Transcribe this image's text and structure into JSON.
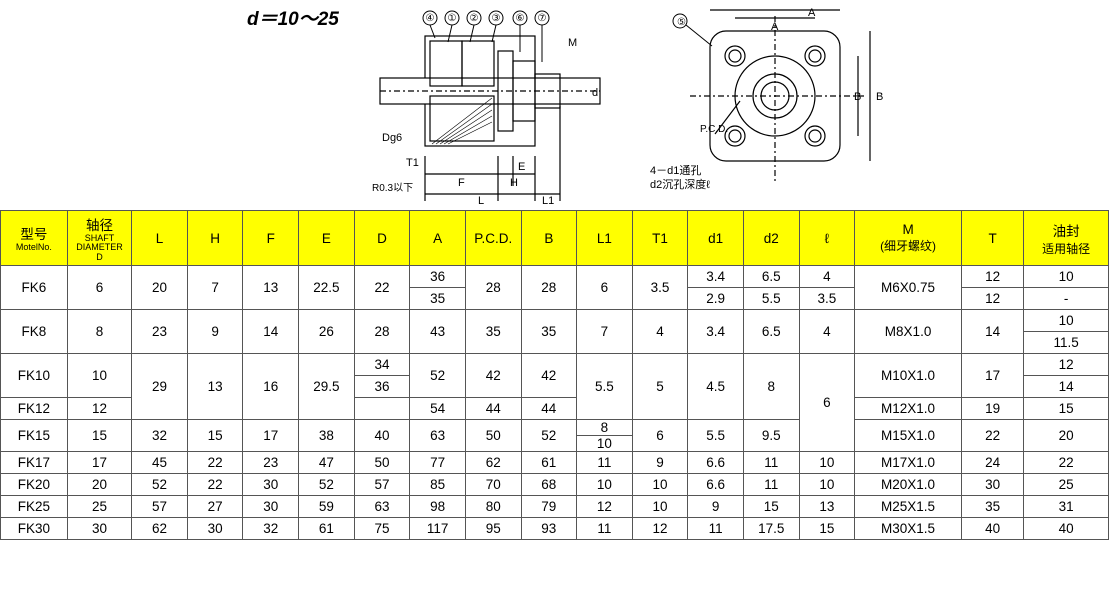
{
  "header_label": "d＝10～25",
  "diagram_left_labels": {
    "balloons": [
      "④",
      "①",
      "②",
      "③",
      "⑥",
      "⑦"
    ],
    "M": "M",
    "d": "d",
    "Dg6": "Dg6",
    "T1": "T1",
    "E": "E",
    "F": "F",
    "H": "H",
    "L": "L",
    "L1": "L1",
    "R": "R0.3以下"
  },
  "diagram_right_labels": {
    "balloon": "⑤",
    "A": "A",
    "B": "B",
    "PCD": "P.C.D.",
    "d1d2": "4－d1通孔\nd2沉孔深度ℓ"
  },
  "columns": [
    {
      "k": "model",
      "t": "型号",
      "s": "MotelNo."
    },
    {
      "k": "shaft",
      "t": "轴径",
      "s": "SHAFT\nDIAMETER\nD"
    },
    {
      "k": "L",
      "t": "L"
    },
    {
      "k": "H",
      "t": "H"
    },
    {
      "k": "F",
      "t": "F"
    },
    {
      "k": "E",
      "t": "E"
    },
    {
      "k": "D",
      "t": "D"
    },
    {
      "k": "A",
      "t": "A"
    },
    {
      "k": "PCD",
      "t": "P.C.D."
    },
    {
      "k": "B",
      "t": "B"
    },
    {
      "k": "L1",
      "t": "L1"
    },
    {
      "k": "T1",
      "t": "T1"
    },
    {
      "k": "d1",
      "t": "d1"
    },
    {
      "k": "d2",
      "t": "d2"
    },
    {
      "k": "ell",
      "t": "ℓ"
    },
    {
      "k": "M",
      "t": "M",
      "s": "(细牙螺纹)"
    },
    {
      "k": "T",
      "t": "T"
    },
    {
      "k": "oil",
      "t": "油封",
      "s": "适用轴径"
    }
  ],
  "rows": {
    "FK6": {
      "shaft": "6",
      "L": "20",
      "H": "7",
      "F": "13",
      "E": "22.5",
      "D": "22",
      "A": [
        "36",
        "35"
      ],
      "PCD": "28",
      "B": "28",
      "L1": "6",
      "T1": "3.5",
      "d1": [
        "3.4",
        "2.9"
      ],
      "d2": [
        "6.5",
        "5.5"
      ],
      "ell": [
        "4",
        "3.5"
      ],
      "M": "M6X0.75",
      "T": [
        "12",
        "12"
      ],
      "oil": [
        "10",
        "-"
      ]
    },
    "FK8": {
      "shaft": "8",
      "L": "23",
      "H": "9",
      "F": "14",
      "E": "26",
      "D": "28",
      "A": "43",
      "PCD": "35",
      "B": "35",
      "L1": "7",
      "T1": "4",
      "d1": "3.4",
      "d2": "6.5",
      "ell": "4",
      "M": "M8X1.0",
      "T": "14",
      "oil": [
        "10",
        "11.5"
      ]
    },
    "FK10": {
      "shaft": "10",
      "D": [
        "34",
        "36"
      ],
      "A": "52",
      "PCD": "42",
      "B": "42",
      "M": "M10X1.0",
      "T": "17",
      "oil": [
        "12",
        "14"
      ]
    },
    "FK12": {
      "shaft": "12",
      "A": "54",
      "PCD": "44",
      "B": "44",
      "M": "M12X1.0",
      "T": "19",
      "oil": "15"
    },
    "grp10_12": {
      "L": "29",
      "H": "13",
      "F": "16",
      "E": "29.5",
      "L1": "5.5",
      "T1": "5",
      "d1": "4.5",
      "d2": "8"
    },
    "ell_10_15": "6",
    "FK15": {
      "shaft": "15",
      "L": "32",
      "H": "15",
      "F": "17",
      "E": "38",
      "D": "40",
      "A": "63",
      "PCD": "50",
      "B": "52",
      "L1": [
        "8",
        "10"
      ],
      "T1": "6",
      "d1": "5.5",
      "d2": "9.5",
      "M": "M15X1.0",
      "T": "22",
      "oil": "20"
    },
    "FK17": {
      "shaft": "17",
      "L": "45",
      "H": "22",
      "F": "23",
      "E": "47",
      "D": "50",
      "A": "77",
      "PCD": "62",
      "B": "61",
      "L1": "11",
      "T1": "9",
      "d1": "6.6",
      "d2": "11",
      "ell": "10",
      "M": "M17X1.0",
      "T": "24",
      "oil": "22"
    },
    "FK20": {
      "shaft": "20",
      "L": "52",
      "H": "22",
      "F": "30",
      "E": "52",
      "D": "57",
      "A": "85",
      "PCD": "70",
      "B": "68",
      "L1": "10",
      "T1": "10",
      "d1": "6.6",
      "d2": "11",
      "ell": "10",
      "M": "M20X1.0",
      "T": "30",
      "oil": "25"
    },
    "FK25": {
      "shaft": "25",
      "L": "57",
      "H": "27",
      "F": "30",
      "E": "59",
      "D": "63",
      "A": "98",
      "PCD": "80",
      "B": "79",
      "L1": "12",
      "T1": "10",
      "d1": "9",
      "d2": "15",
      "ell": "13",
      "M": "M25X1.5",
      "T": "35",
      "oil": "31"
    },
    "FK30": {
      "shaft": "30",
      "L": "62",
      "H": "30",
      "F": "32",
      "E": "61",
      "D": "75",
      "A": "117",
      "PCD": "95",
      "B": "93",
      "L1": "11",
      "T1": "12",
      "d1": "11",
      "d2": "17.5",
      "ell": "15",
      "M": "M30X1.5",
      "T": "40",
      "oil": "40"
    }
  },
  "colors": {
    "header_bg": "#ffff00",
    "border": "#555555"
  }
}
